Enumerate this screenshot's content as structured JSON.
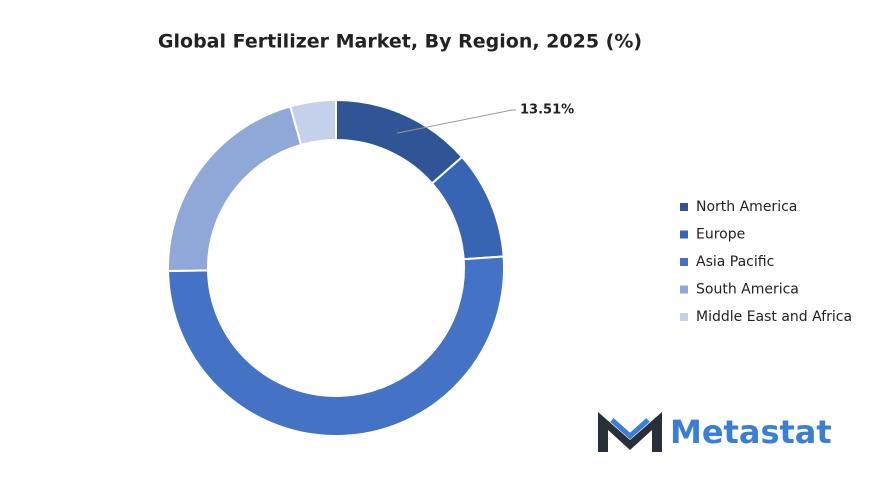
{
  "chart_data": {
    "type": "donut",
    "title": "Global Fertilizer Market, By Region, 2025 (%)",
    "categories": [
      "North America",
      "Europe",
      "Asia Pacific",
      "South America",
      "Middle East and Africa"
    ],
    "values": [
      13.51,
      10.4,
      50.8,
      20.9,
      4.39
    ],
    "value_labels": [
      "13.51%",
      null,
      null,
      null,
      null
    ],
    "colors": [
      "#2f5597",
      "#3864b4",
      "#4472c4",
      "#8fa8d8",
      "#c5d0ea"
    ],
    "legend": "right"
  },
  "logo": {
    "text": "Metastat"
  }
}
